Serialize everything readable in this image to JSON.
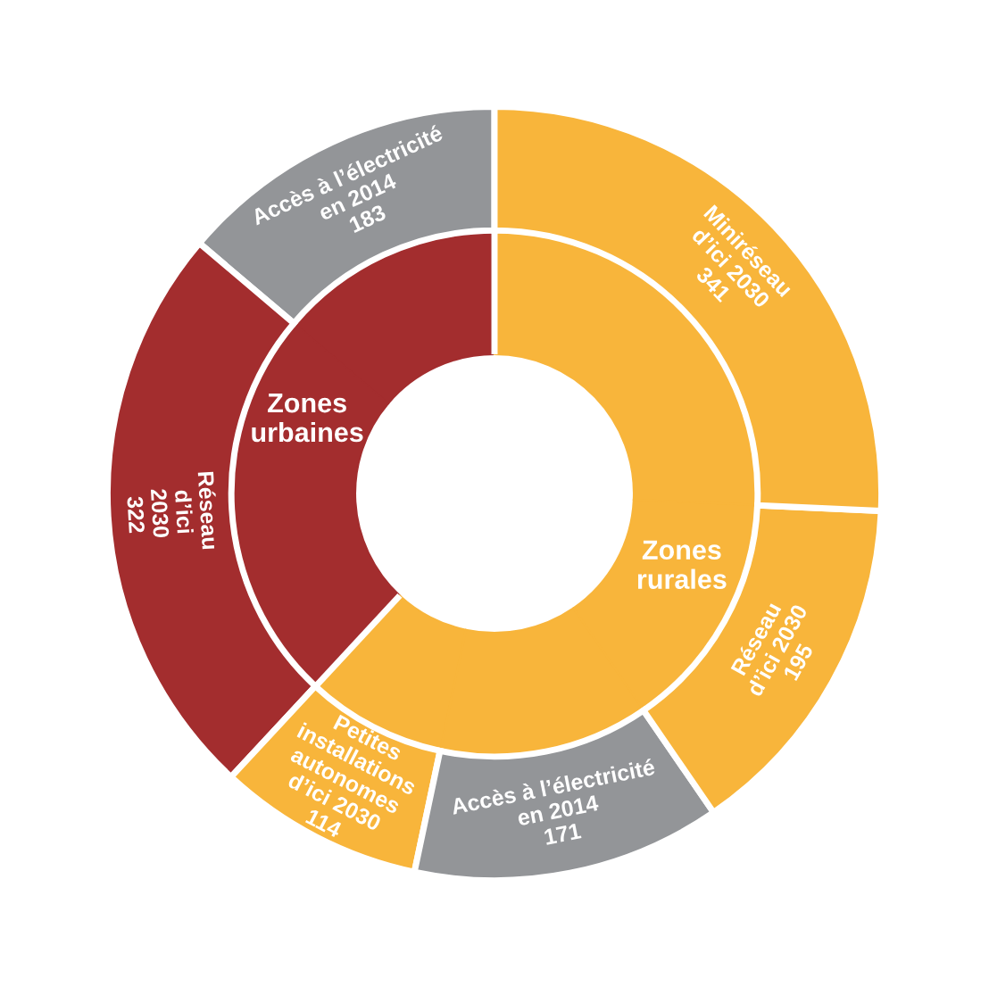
{
  "chart_data": {
    "type": "donut",
    "categories": [
      "Accès à l’électricité\nen 2014",
      "Réseau\nd’ici\n2030",
      "Petites\ninstallations\nautonomes\nd’ici 2030",
      "Accès à l’électricité\nen 2014",
      "Réseau\nd’ici 2030",
      "Miniréseau\nd’ici 2030"
    ],
    "annotations": [
      "Zones\nurbaines",
      "Zones\nrurales"
    ],
    "series": [
      {
        "values": [
          13.8,
          24.3,
          8.6,
          12.9,
          14.7,
          25.7
        ],
        "colors": [
          "#a32d2e",
          "#a32d2e",
          "#f8b53b",
          "#f8b53b",
          "#f8b53b",
          "#f8b53b"
        ]
      },
      {
        "values": [
          183,
          322,
          114,
          171,
          195,
          341
        ],
        "colors": [
          "#939598",
          "#a32d2e",
          "#f8b53b",
          "#939598",
          "#f8b53b",
          "#f8b53b"
        ],
        "value_labels": [
          "183",
          "322",
          "114",
          "171",
          "195",
          "341"
        ]
      }
    ]
  }
}
